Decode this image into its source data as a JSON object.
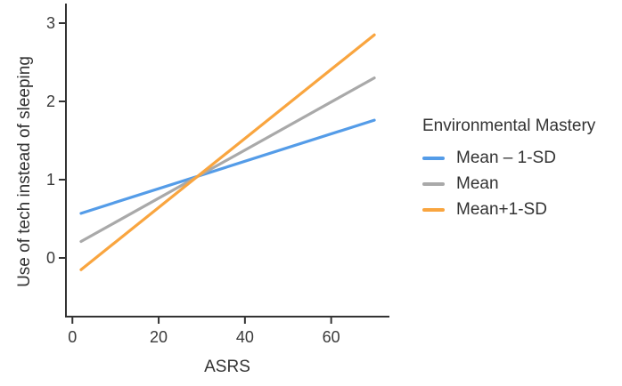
{
  "chart_data": {
    "type": "line",
    "title": "",
    "xlabel": "ASRS",
    "ylabel": "Use of tech instead of sleeping",
    "xlim": [
      -1.5,
      73.5
    ],
    "ylim": [
      -0.75,
      3.25
    ],
    "xticks": [
      0,
      20,
      40,
      60
    ],
    "yticks": [
      0,
      1,
      2,
      3
    ],
    "grid": false,
    "x": [
      2,
      70
    ],
    "series": [
      {
        "name": "Mean – 1-SD",
        "color": "#549CE8",
        "values": [
          0.57,
          1.76
        ]
      },
      {
        "name": "Mean",
        "color": "#A9A9A9",
        "values": [
          0.21,
          2.3
        ]
      },
      {
        "name": "Mean+1-SD",
        "color": "#F9A53F",
        "values": [
          -0.15,
          2.85
        ]
      }
    ],
    "legend": {
      "title": "Environmental Mastery",
      "position": "right"
    },
    "axis_color": "#333333",
    "text_color": "#3A3A3A"
  }
}
